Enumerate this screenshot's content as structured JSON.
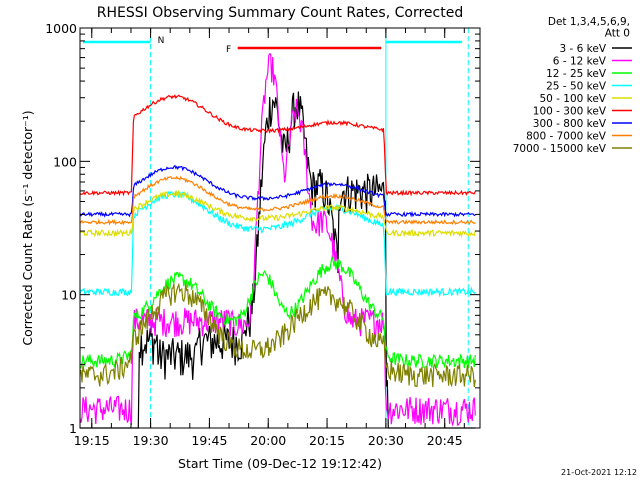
{
  "chart_data": {
    "type": "line",
    "title": "RHESSI Observing Summary Count Rates, Corrected",
    "xlabel": "Start Time (09-Dec-12 19:12:42)",
    "ylabel": "Corrected Count Rate (s⁻¹ detector⁻¹)",
    "y_scale": "log",
    "ylim": [
      1,
      1000
    ],
    "y_ticks": [
      {
        "value": 1,
        "label": "1"
      },
      {
        "value": 10,
        "label": "10"
      },
      {
        "value": 100,
        "label": "100"
      },
      {
        "value": 1000,
        "label": "1000"
      }
    ],
    "x_range_minutes": [
      19.2,
      20.9
    ],
    "x_ticks": [
      {
        "value": 19.25,
        "label": "19:15"
      },
      {
        "value": 19.5,
        "label": "19:30"
      },
      {
        "value": 19.75,
        "label": "19:45"
      },
      {
        "value": 20.0,
        "label": "20:00"
      },
      {
        "value": 20.25,
        "label": "20:15"
      },
      {
        "value": 20.5,
        "label": "20:30"
      },
      {
        "value": 20.75,
        "label": "20:45"
      }
    ],
    "legend_header": [
      "Det 1,3,4,5,6,9,",
      "Att 0"
    ],
    "legend_position": "top-right, outside",
    "series": [
      {
        "name": "3 - 6 keV",
        "color": "#000000"
      },
      {
        "name": "6 - 12 keV",
        "color": "#ff00ff"
      },
      {
        "name": "12 - 25 keV",
        "color": "#00ff00"
      },
      {
        "name": "25 - 50 keV",
        "color": "#00ffff"
      },
      {
        "name": "50 - 100 keV",
        "color": "#dddd00"
      },
      {
        "name": "100 - 300 keV",
        "color": "#ff0000"
      },
      {
        "name": "300 - 800 keV",
        "color": "#0000ff"
      },
      {
        "name": "800 - 7000 keV",
        "color": "#ff8000"
      },
      {
        "name": "7000 - 15000 keV",
        "color": "#808000"
      }
    ],
    "annotations": [
      {
        "label": "N",
        "color": "#00ffff"
      },
      {
        "label": "F",
        "color": "#ff0000"
      }
    ],
    "footer_date": "21-Oct-2021 12:12"
  }
}
